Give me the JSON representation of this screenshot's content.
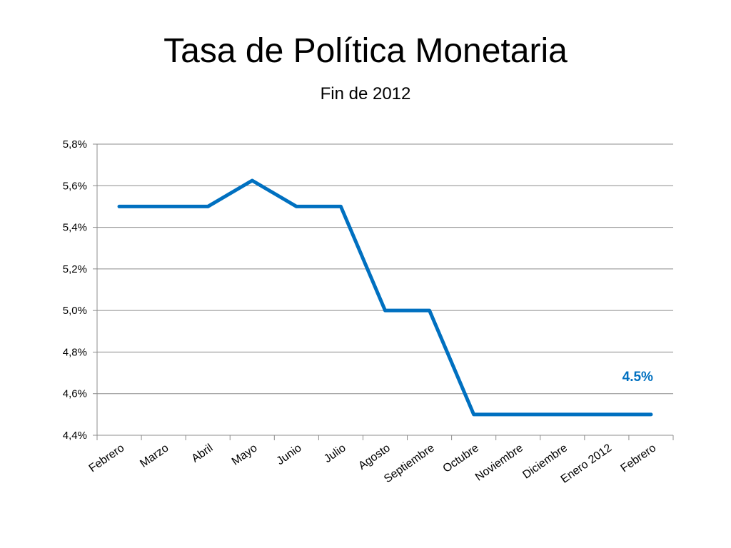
{
  "chart_data": {
    "type": "line",
    "title": "Tasa de Política Monetaria",
    "subtitle": "Fin de 2012",
    "categories": [
      "Febrero",
      "Marzo",
      "Abril",
      "Mayo",
      "Junio",
      "Julio",
      "Agosto",
      "Septiembre",
      "Octubre",
      "Noviembre",
      "Diciembre",
      "Enero 2012",
      "Febrero"
    ],
    "values": [
      5.5,
      5.5,
      5.5,
      5.625,
      5.5,
      5.5,
      5.0,
      5.0,
      4.5,
      4.5,
      4.5,
      4.5,
      4.5
    ],
    "ylim": [
      4.4,
      5.8
    ],
    "yticks": [
      "4,4%",
      "4,6%",
      "4,8%",
      "5,0%",
      "5,2%",
      "5,4%",
      "5,6%",
      "5,8%"
    ],
    "ytick_values": [
      4.4,
      4.6,
      4.8,
      5.0,
      5.2,
      5.4,
      5.6,
      5.8
    ],
    "grid": true,
    "annotation": "4.5%",
    "color": "#0070C0"
  }
}
